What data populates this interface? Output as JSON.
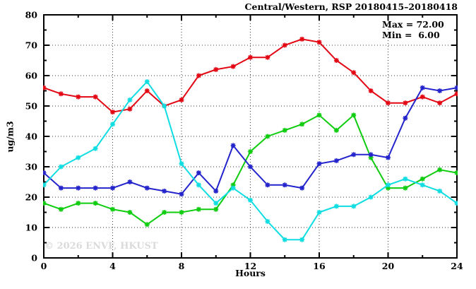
{
  "title": "Central/Western, RSP 20180415–20180418",
  "annotation": {
    "max_label": "Max = 72.00",
    "min_label": "Min =  6.00"
  },
  "watermark": "© 2026 ENVF, HKUST",
  "chart_data": {
    "type": "line",
    "title": "Central/Western, RSP 20180415–20180418",
    "xlabel": "Hours",
    "ylabel": "ug/m3",
    "xlim": [
      0,
      24
    ],
    "ylim": [
      0,
      80
    ],
    "xticks": [
      0,
      4,
      8,
      12,
      16,
      20,
      24
    ],
    "xticks_minor": [
      2,
      6,
      10,
      14,
      18,
      22
    ],
    "yticks": [
      0,
      10,
      20,
      30,
      40,
      50,
      60,
      70,
      80
    ],
    "yticks_minor": [
      5,
      15,
      25,
      35,
      45,
      55,
      65,
      75
    ],
    "grid": true,
    "legend": "none",
    "marker": "asterisk",
    "max": 72.0,
    "min": 6.0,
    "x": [
      0,
      1,
      2,
      3,
      4,
      5,
      6,
      7,
      8,
      9,
      10,
      11,
      12,
      13,
      14,
      15,
      16,
      17,
      18,
      19,
      20,
      21,
      22,
      23,
      24
    ],
    "series": [
      {
        "name": "series-red",
        "color": "#e30613",
        "values": [
          56,
          54,
          53,
          53,
          48,
          49,
          55,
          50,
          52,
          60,
          62,
          63,
          66,
          66,
          70,
          72,
          71,
          65,
          61,
          55,
          51,
          51,
          53,
          51,
          54
        ]
      },
      {
        "name": "series-green",
        "color": "#0ecc0e",
        "values": [
          18,
          16,
          18,
          18,
          16,
          15,
          11,
          15,
          15,
          16,
          16,
          24,
          35,
          40,
          42,
          44,
          47,
          42,
          47,
          33,
          23,
          23,
          26,
          29,
          28
        ]
      },
      {
        "name": "series-blue",
        "color": "#2424cc",
        "values": [
          28,
          23,
          23,
          23,
          23,
          25,
          23,
          22,
          21,
          28,
          22,
          37,
          30,
          24,
          24,
          23,
          31,
          32,
          34,
          34,
          33,
          46,
          56,
          55,
          56
        ]
      },
      {
        "name": "series-cyan",
        "color": "#0fdde2",
        "values": [
          24,
          30,
          33,
          36,
          44,
          52,
          58,
          50,
          31,
          24,
          18,
          23,
          19,
          12,
          6,
          6,
          15,
          17,
          17,
          20,
          24,
          26,
          24,
          22,
          18
        ]
      }
    ]
  }
}
